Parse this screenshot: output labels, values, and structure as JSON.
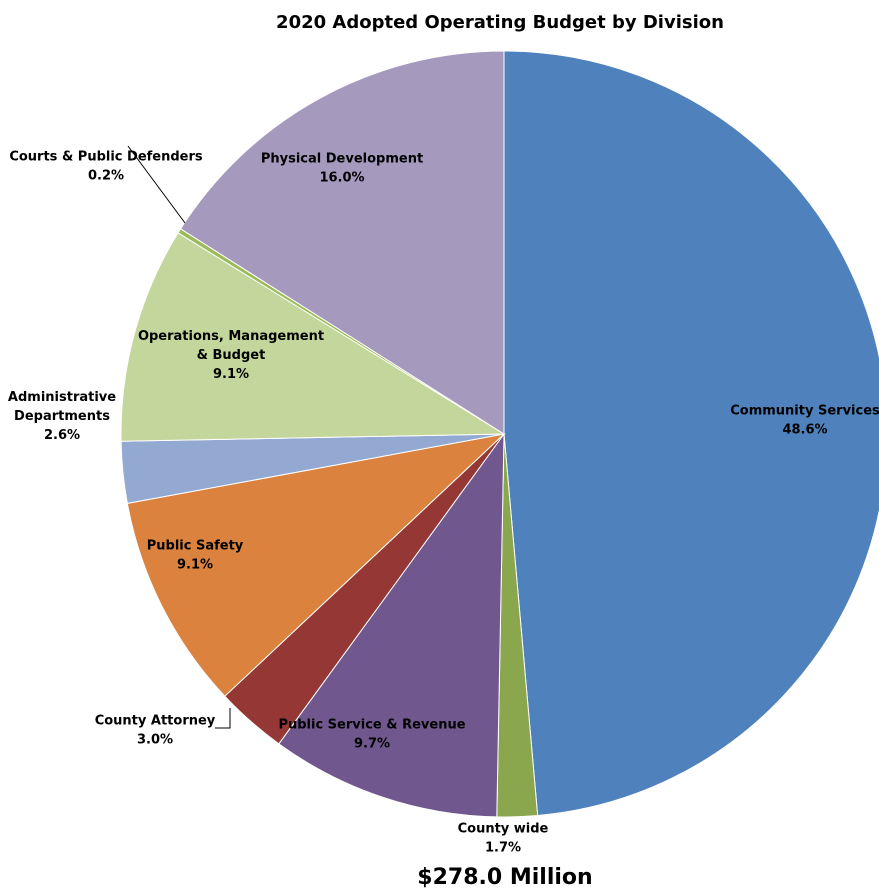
{
  "chart_data": {
    "type": "pie",
    "title": "2020 Adopted Operating Budget by Division",
    "total_label": "$278.0 Million",
    "slices": [
      {
        "label": "Community Services",
        "label_lines": [
          "Community Services"
        ],
        "value": 48.6,
        "value_label": "48.6%",
        "color": "#4F81BD"
      },
      {
        "label": "County wide",
        "label_lines": [
          "County wide"
        ],
        "value": 1.7,
        "value_label": "1.7%",
        "color": "#8AA74E"
      },
      {
        "label": "Public Service & Revenue",
        "label_lines": [
          "Public Service & Revenue"
        ],
        "value": 9.7,
        "value_label": "9.7%",
        "color": "#70588F"
      },
      {
        "label": "County Attorney",
        "label_lines": [
          "County Attorney"
        ],
        "value": 3.0,
        "value_label": "3.0%",
        "color": "#943735"
      },
      {
        "label": "Public Safety",
        "label_lines": [
          "Public Safety"
        ],
        "value": 9.1,
        "value_label": "9.1%",
        "color": "#DA823E"
      },
      {
        "label": "Administrative Departments",
        "label_lines": [
          "Administrative",
          "Departments"
        ],
        "value": 2.6,
        "value_label": "2.6%",
        "color": "#93A9D1"
      },
      {
        "label": "Operations, Management & Budget",
        "label_lines": [
          "Operations, Management",
          "& Budget"
        ],
        "value": 9.1,
        "value_label": "9.1%",
        "color": "#C3D69B"
      },
      {
        "label": "Courts & Public Defenders",
        "label_lines": [
          "Courts & Public Defenders"
        ],
        "value": 0.2,
        "value_label": "0.2%",
        "color": "#9BBB59"
      },
      {
        "label": "Physical Development",
        "label_lines": [
          "Physical Development"
        ],
        "value": 16.0,
        "value_label": "16.0%",
        "color": "#A699BE"
      }
    ]
  }
}
